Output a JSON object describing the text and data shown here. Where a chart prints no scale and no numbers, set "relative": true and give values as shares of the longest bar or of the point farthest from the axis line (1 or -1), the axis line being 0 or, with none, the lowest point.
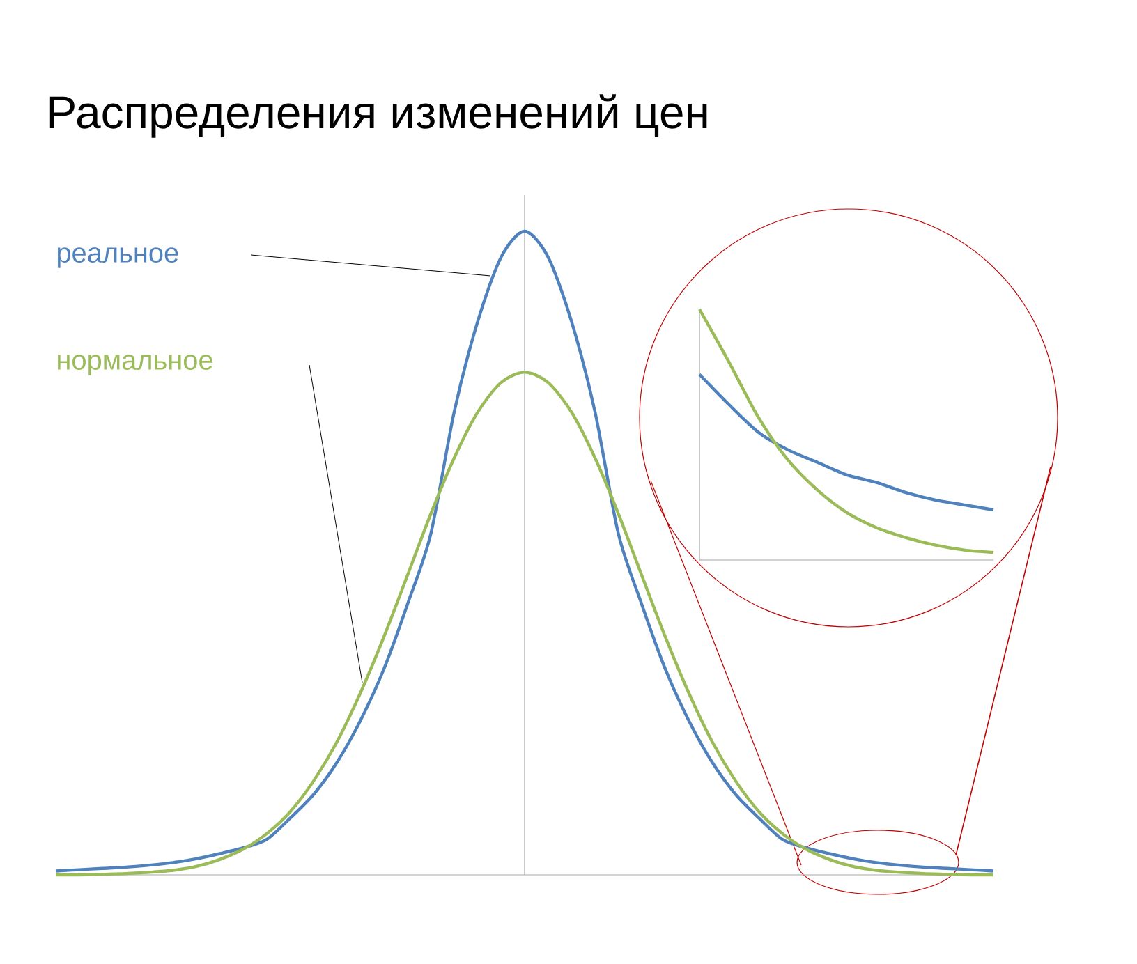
{
  "chart_data": [
    {
      "type": "line",
      "title": "Распределения изменений цен",
      "relative": true,
      "categories": [
        null,
        null,
        null,
        null,
        null,
        null,
        null,
        null,
        null,
        null,
        null,
        null,
        null,
        null,
        null,
        null,
        null,
        null,
        null,
        null,
        null,
        null,
        null,
        null,
        null,
        null,
        null,
        null,
        null,
        null,
        null,
        null,
        null,
        null,
        null,
        null,
        null,
        null,
        null,
        null,
        null
      ],
      "series": [
        {
          "name": "реальное",
          "color": "#4f81bd",
          "values": [
            0.006,
            0.008,
            0.01,
            0.012,
            0.015,
            0.019,
            0.025,
            0.033,
            0.042,
            0.055,
            0.088,
            0.125,
            0.175,
            0.24,
            0.32,
            0.42,
            0.53,
            0.72,
            0.86,
            0.96,
            1.0,
            0.96,
            0.86,
            0.72,
            0.53,
            0.42,
            0.32,
            0.24,
            0.175,
            0.125,
            0.088,
            0.055,
            0.042,
            0.033,
            0.025,
            0.019,
            0.015,
            0.012,
            0.01,
            0.008,
            0.006
          ]
        },
        {
          "name": "нормальное",
          "color": "#9bbb59",
          "values": [
            0,
            0,
            0.001,
            0.002,
            0.004,
            0.007,
            0.013,
            0.024,
            0.04,
            0.064,
            0.098,
            0.146,
            0.207,
            0.283,
            0.37,
            0.465,
            0.561,
            0.648,
            0.719,
            0.765,
            0.781,
            0.765,
            0.719,
            0.648,
            0.561,
            0.465,
            0.37,
            0.283,
            0.207,
            0.146,
            0.098,
            0.064,
            0.04,
            0.024,
            0.013,
            0.007,
            0.004,
            0.002,
            0.001,
            0,
            0
          ]
        }
      ]
    },
    {
      "type": "line",
      "relative": true,
      "categories": [
        null,
        null,
        null,
        null,
        null,
        null,
        null,
        null,
        null,
        null,
        null
      ],
      "series": [
        {
          "color": "#4f81bd",
          "values": [
            0.74,
            0.62,
            0.51,
            0.44,
            0.39,
            0.34,
            0.31,
            0.27,
            0.24,
            0.22,
            0.2
          ]
        },
        {
          "color": "#9bbb59",
          "values": [
            1.0,
            0.79,
            0.57,
            0.4,
            0.28,
            0.19,
            0.13,
            0.09,
            0.06,
            0.04,
            0.03
          ]
        }
      ]
    }
  ]
}
